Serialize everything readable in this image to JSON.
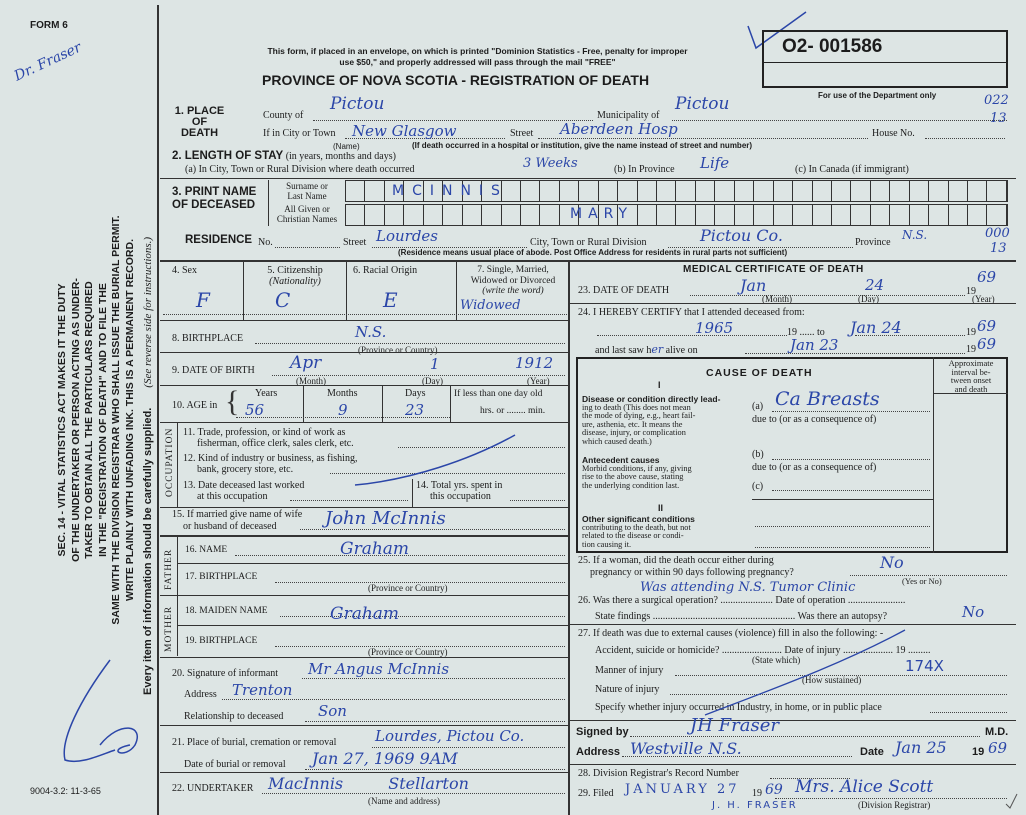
{
  "margin": {
    "form_no": "FORM 6",
    "doctor_note": "Dr. Fraser",
    "statute": [
      "SEC. 14 - VITAL STATISTICS ACT MAKES IT THE DUTY",
      "OF THE UNDERTAKER OR PERSON ACTING AS UNDER-",
      "TAKER TO OBTAIN ALL THE PARTICULARS REQUIRED",
      "IN THE \"REGISTRATION OF DEATH\" AND TO FILE THE",
      "SAME WITH THE DIVISION REGISTRAR WHO SHALL ISSUE THE BURIAL PERMIT.",
      "WRITE PLAINLY WITH UNFADING INK. THIS IS A PERMANENT RECORD."
    ],
    "every_item": "Every item of information should be carefully supplied.",
    "see_reverse": "(See reverse side for instructions.)",
    "print_code": "9004-3.2: 11-3-65"
  },
  "header": {
    "notice1": "This form, if placed in an envelope, on which is printed \"Dominion Statistics - Free, penalty for improper",
    "notice2": "use $50,\" and properly addressed will pass through the mail \"FREE\"",
    "title": "PROVINCE OF NOVA SCOTIA - REGISTRATION OF DEATH",
    "reg_number": "O2- 001586",
    "dept_only": "For use of the Department only",
    "dept_code1": "022",
    "dept_code2": "13",
    "dept_code3": "000",
    "dept_code4": "13"
  },
  "s1": {
    "l1": "1. PLACE",
    "l2": "OF",
    "l3": "DEATH",
    "county_label": "County of",
    "county": "Pictou",
    "municipality_label": "Municipality of",
    "municipality": "Pictou",
    "city_label": "If in City or Town",
    "city": "New Glasgow",
    "name_note": "(Name)",
    "street_label": "Street",
    "street": "Aberdeen Hosp",
    "house_label": "House No.",
    "hosp_note": "(If death occurred in a hospital or institution, give the name instead of street and number)"
  },
  "s2": {
    "label": "2. LENGTH OF STAY",
    "sub": "(in years, months and days)",
    "a_label": "(a) In City, Town or Rural Division where death occurred",
    "a": "3 Weeks",
    "b_label": "(b) In Province",
    "b": "Life",
    "c_label": "(c) In Canada (if immigrant)"
  },
  "s3": {
    "l1": "3. PRINT NAME",
    "l2": "OF DECEASED",
    "surname_label1": "Surname or",
    "surname_label2": "Last Name",
    "given_label1": "All Given or",
    "given_label2": "Christian Names",
    "surname": "MCINNIS",
    "given": "MARY",
    "res_label": "RESIDENCE",
    "no_label": "No.",
    "street_label": "Street",
    "street": "Lourdes",
    "city_label": "City, Town or Rural Division",
    "city": "Pictou Co.",
    "prov_label": "Province",
    "prov": "N.S.",
    "note": "(Residence means usual place of abode. Post Office Address for residents in rural parts not sufficient)"
  },
  "left": {
    "sex_label": "4. Sex",
    "sex": "F",
    "cit_label": "5. Citizenship",
    "cit_sub": "(Nationality)",
    "cit": "C",
    "race_label": "6. Racial Origin",
    "race": "E",
    "marital_label1": "7. Single, Married,",
    "marital_label2": "Widowed or Divorced",
    "marital_label3": "(write the word)",
    "marital": "Widowed",
    "birthplace_label": "8. BIRTHPLACE",
    "birthplace": "N.S.",
    "prov_country": "(Province or Country)",
    "dob_label": "9. DATE OF BIRTH",
    "dob_month": "Apr",
    "dob_day": "1",
    "dob_year": "1912",
    "month": "(Month)",
    "day": "(Day)",
    "year": "(Year)",
    "age_label": "10. AGE in",
    "years_label": "Years",
    "years": "56",
    "months_label": "Months",
    "months": "9",
    "days_label": "Days",
    "days": "23",
    "lt_day": "If less than one day old",
    "hrs": "hrs. or ........ min.",
    "occupation": "OCCUPATION",
    "q11a": "11. Trade, profession, or kind of work as",
    "q11b": "fisherman, office clerk, sales clerk, etc.",
    "q12a": "12. Kind of industry or business, as fishing,",
    "q12b": "bank, grocery store, etc.",
    "q13a": "13. Date deceased last worked",
    "q13b": "at this occupation",
    "q14a": "14. Total yrs. spent in",
    "q14b": "this occupation",
    "q15a": "15. If married give name of wife",
    "q15b": "or husband of deceased",
    "spouse": "John McInnis",
    "father": "FATHER",
    "q16": "16. NAME",
    "father_name": "Graham",
    "q17": "17. BIRTHPLACE",
    "mother": "MOTHER",
    "q18": "18. MAIDEN NAME",
    "mother_name": "Graham",
    "q19": "19. BIRTHPLACE",
    "q20": "20. Signature of informant",
    "informant": "Mr Angus McInnis",
    "address_label": "Address",
    "address": "Trenton",
    "rel_label": "Relationship to deceased",
    "rel": "Son",
    "q21": "21. Place of burial, cremation or removal",
    "burial_place": "Lourdes, Pictou Co.",
    "burial_date_label": "Date of burial or removal",
    "burial_date": "Jan 27, 1969 9AM",
    "q22": "22. UNDERTAKER",
    "undertaker": "MacInnis Stellarton",
    "name_addr": "(Name and address)"
  },
  "right": {
    "med_title": "MEDICAL CERTIFICATE OF DEATH",
    "q23": "23. DATE OF DEATH",
    "dod_month": "Jan",
    "dod_day": "24",
    "dod_year": "69",
    "nineteen": "19",
    "q24": "24. I HEREBY CERTIFY that I attended deceased from:",
    "from": "1965",
    "to_label": "19 ...... to",
    "to": "Jan 24",
    "to_year": "69",
    "last_saw": "and last saw h",
    "her": "er",
    "alive_on": "alive on",
    "last_date": "Jan 23",
    "last_year": "69",
    "cause_title": "CAUSE OF DEATH",
    "interval": [
      "Approximate",
      "interval be-",
      "tween onset",
      "and death"
    ],
    "roman1": "I",
    "roman2": "II",
    "direct": [
      "Disease or condition directly lead-",
      "ing to death (This does not mean",
      "the mode of dying, e.g., heart fail-",
      "ure, asthenia, etc. It means the",
      "disease, injury, or complication",
      "which caused death.)"
    ],
    "a": "(a)",
    "cause_a": "Ca Breasts",
    "due_to": "due to (or as a consequence of)",
    "b": "(b)",
    "c": "(c)",
    "antecedent": [
      "Antecedent causes",
      "Morbid conditions, if any, giving",
      "rise to the above cause, stating",
      "the underlying condition last."
    ],
    "other": [
      "Other significant conditions",
      "contributing to the death, but not",
      "related to the disease or condi-",
      "tion causing it."
    ],
    "q25a": "25. If a woman, did the death occur either during",
    "q25b": "pregnancy or within 90 days following pregnancy?",
    "pregnancy": "No",
    "yes_no": "(Yes or No)",
    "q26": "26. Was there a surgical operation? ..................... Date of operation .......................",
    "surgery_note": "Was attending N.S. Tumor Clinic",
    "findings": "State findings ......................................................... Was there an autopsy?",
    "autopsy": "No",
    "q27": "27. If death was due to external causes (violence) fill in also the following: -",
    "accident": "Accident, suicide or homicide? ........................ Date of injury .................... 19 .........",
    "state_which": "(State which)",
    "manner": "Manner of injury",
    "code": "174X",
    "how": "(How sustained)",
    "nature": "Nature of injury",
    "specify": "Specify whether injury occurred in Industry, in home, or in public place",
    "signed_label": "Signed by",
    "signature": "JH Fraser",
    "md": "M.D.",
    "addr_label": "Address",
    "addr": "Westville N.S.",
    "date_label": "Date",
    "date": "Jan 25",
    "date_year": "69",
    "q28": "28. Division Registrar's Record Number",
    "q29": "29. Filed",
    "filed": "JANUARY 27",
    "filed_year": "69",
    "registrar": "Mrs. Alice Scott",
    "registrar_label": "(Division Registrar)",
    "fraser": "J. H. FRASER"
  },
  "colors": {
    "ink": "#2b46a8",
    "paper": "#dde5e4"
  }
}
